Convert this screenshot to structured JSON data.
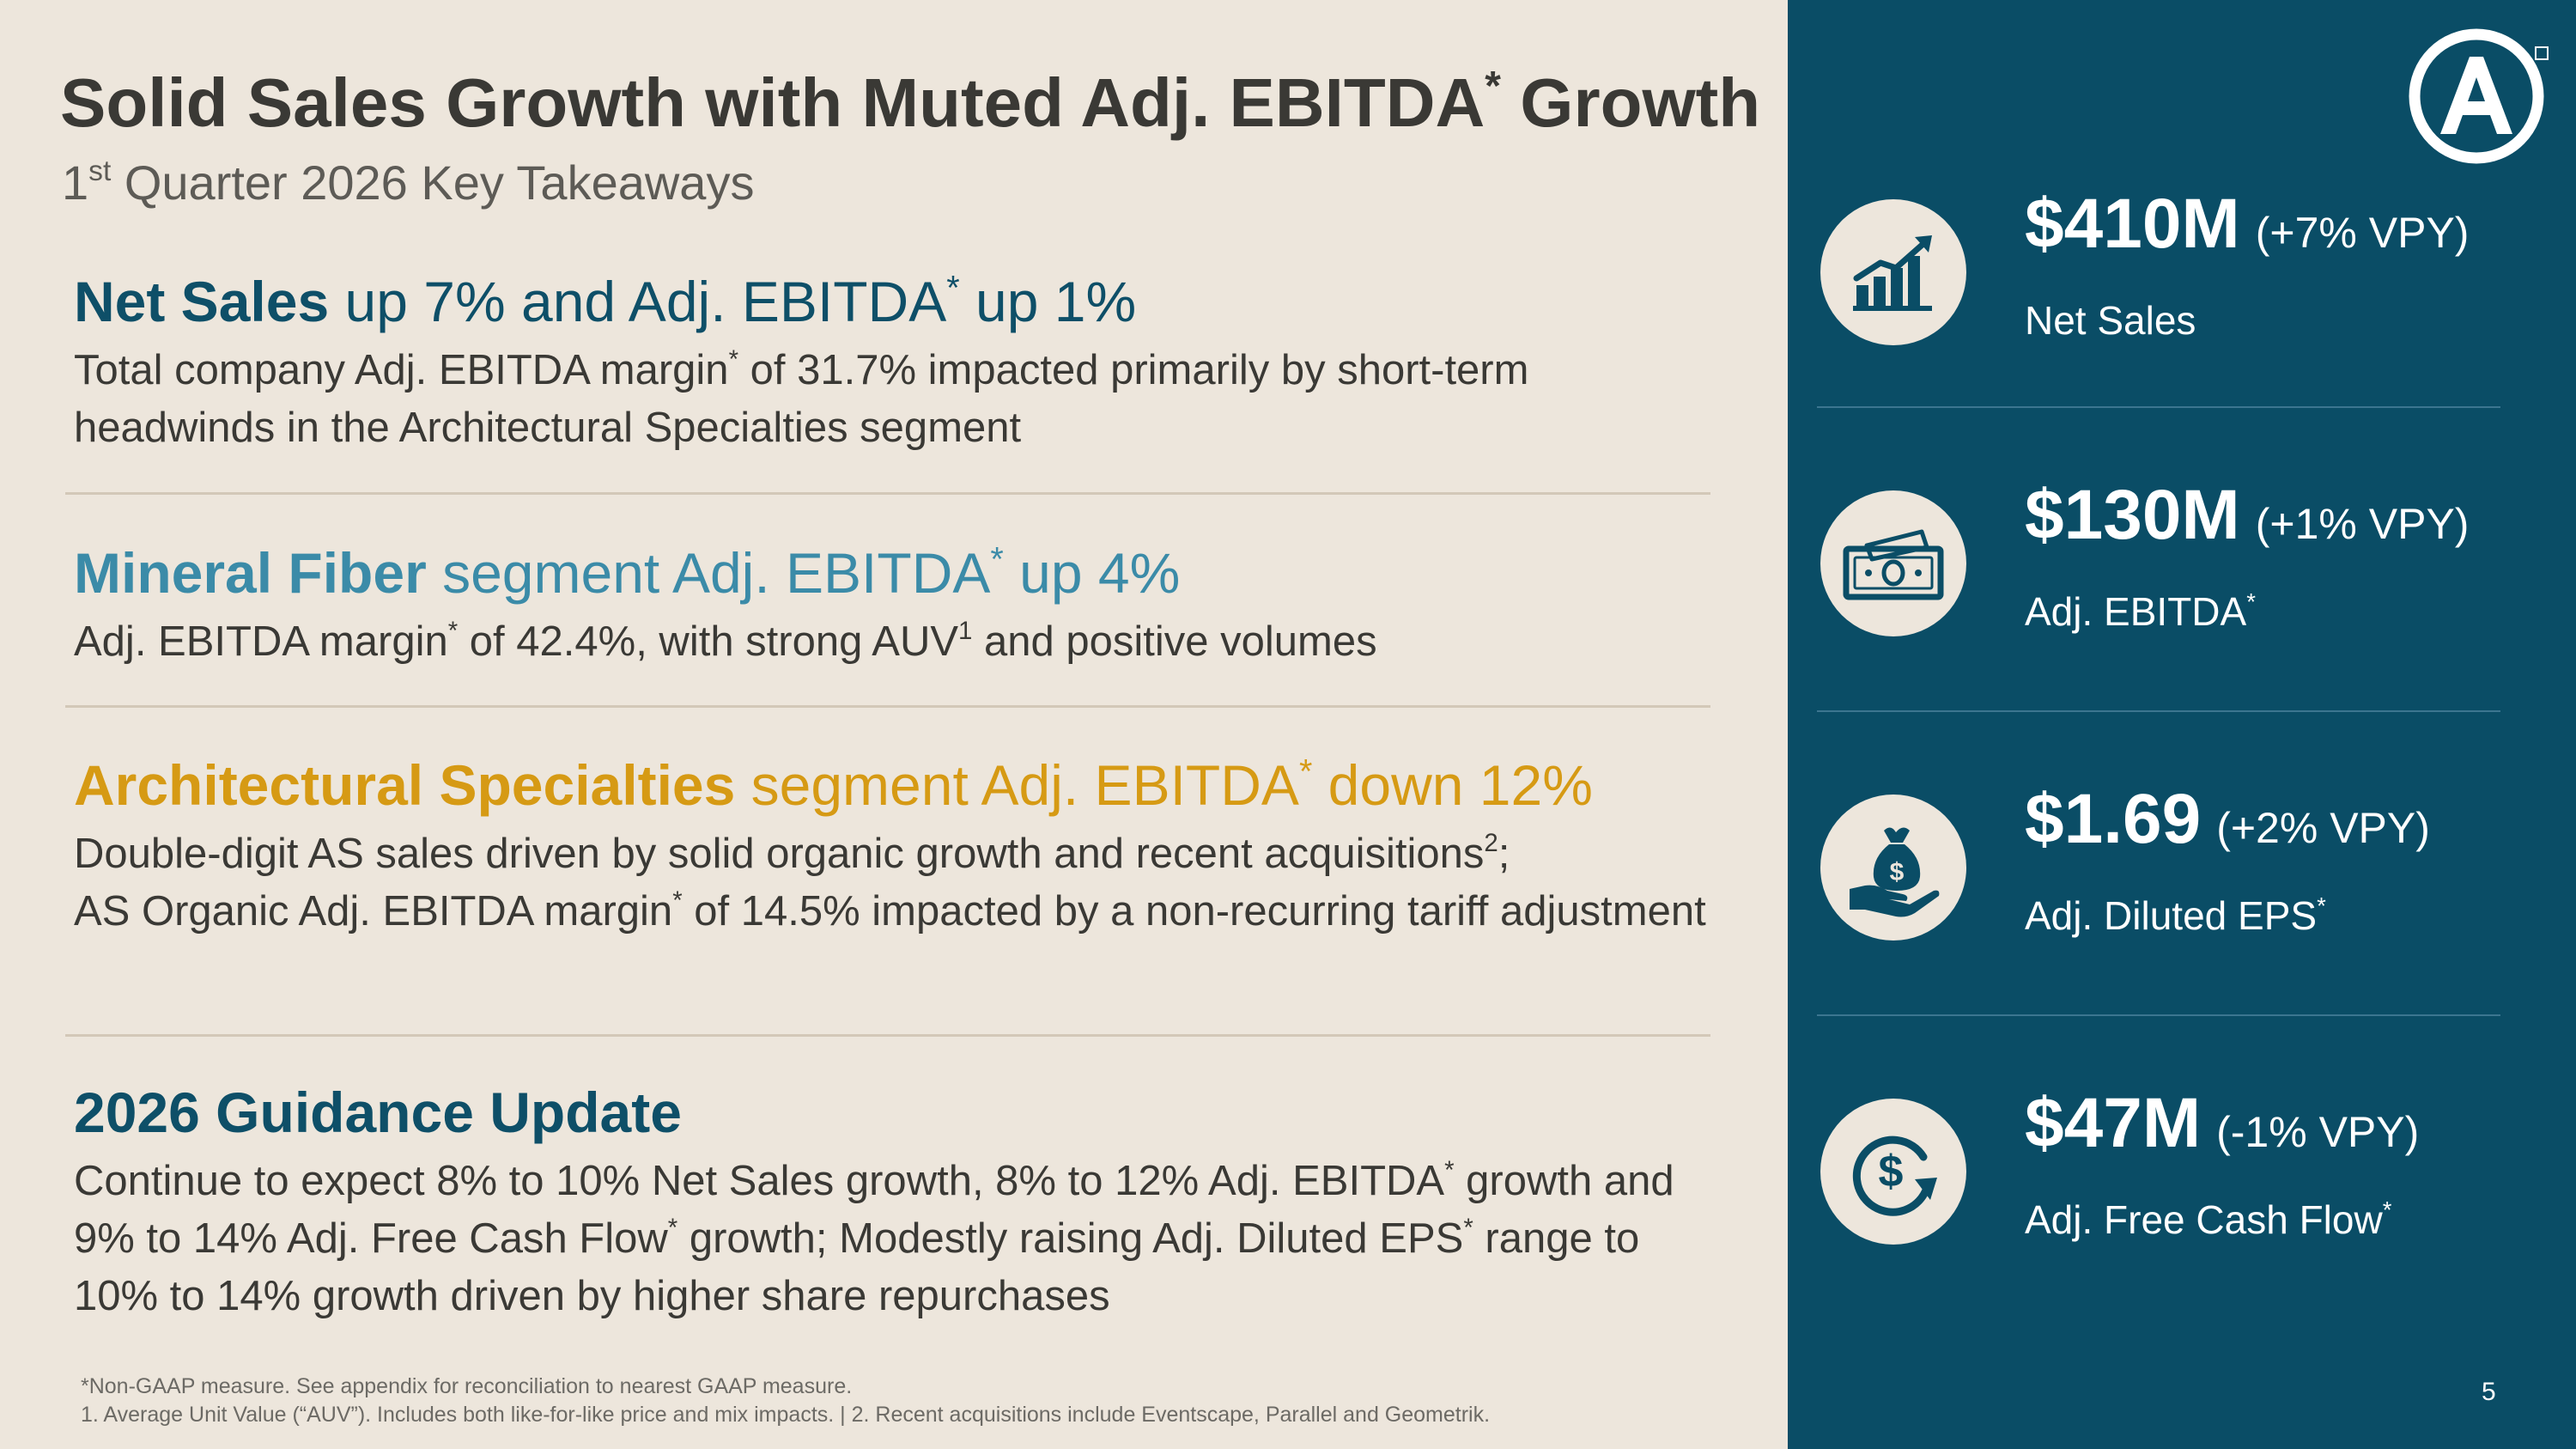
{
  "header": {
    "title": "Solid Sales Growth with Muted Adj. EBITDA",
    "title_sup": "*",
    "title_end": " Growth",
    "subtitle_pre": "1",
    "subtitle_sup": "st",
    "subtitle_post": " Quarter 2026 Key Takeaways"
  },
  "takeaways": [
    {
      "heading_strong": "Net Sales",
      "heading_rest": " up 7% and Adj. EBITDA",
      "heading_sup": "*",
      "heading_end": " up 1%",
      "body_a": "Total company Adj. EBITDA margin",
      "body_sup": "*",
      "body_b": " of 31.7% impacted primarily by short-term headwinds in the Architectural Specialties segment"
    },
    {
      "heading_strong": "Mineral Fiber",
      "heading_rest": " segment Adj. EBITDA",
      "heading_sup": "*",
      "heading_end": " up 4%",
      "body_a": "Adj. EBITDA margin",
      "body_sup": "*",
      "body_b": " of 42.4%, with strong AUV",
      "body_sup2": "1",
      "body_c": " and positive volumes"
    },
    {
      "heading_strong": "Architectural Specialties",
      "heading_rest": " segment Adj. EBITDA",
      "heading_sup": "*",
      "heading_end": " down 12%",
      "body_a": "Double-digit AS sales driven by solid organic growth and recent acquisitions",
      "body_sup": "2",
      "body_b": ";",
      "body_c": "AS Organic Adj. EBITDA margin",
      "body_sup2": "*",
      "body_d": " of 14.5% impacted by a non-recurring tariff adjustment"
    },
    {
      "heading_strong": "2026 Guidance Update",
      "body_a": "Continue to expect 8% to 10% Net Sales growth, 8% to 12% Adj. EBITDA",
      "body_sup": "*",
      "body_b": " growth and 9% to 14% Adj. Free Cash Flow",
      "body_sup2": "*",
      "body_c": " growth; Modestly raising Adj. Diluted EPS",
      "body_sup3": "*",
      "body_d": " range to 10% to 14% growth driven by higher share repurchases"
    }
  ],
  "footnotes": {
    "line1": "*Non-GAAP measure. See appendix for reconciliation to nearest GAAP measure.",
    "line2": "1.  Average Unit Value (“AUV”). Includes both like-for-like price and mix impacts.  |  2.  Recent acquisitions include Eventscape, Parallel and Geometrik."
  },
  "metrics": [
    {
      "icon": "growth-chart-icon",
      "value": "$410M",
      "change": "(+7% VPY)",
      "label": "Net Sales",
      "label_sup": ""
    },
    {
      "icon": "cash-bills-icon",
      "value": "$130M",
      "change": "(+1% VPY)",
      "label": "Adj. EBITDA",
      "label_sup": "*"
    },
    {
      "icon": "money-bag-hand-icon",
      "value": "$1.69",
      "change": "(+2% VPY)",
      "label": "Adj. Diluted EPS",
      "label_sup": "*"
    },
    {
      "icon": "dollar-cycle-icon",
      "value": "$47M",
      "change": "(-1% VPY)",
      "label": "Adj. Free Cash Flow",
      "label_sup": "*"
    }
  ],
  "brand": {
    "logo": "armstrong-a-logo-icon",
    "tm": "TM"
  },
  "page_number": "5",
  "colors": {
    "background": "#ede6dc",
    "panel": "#0a4d66",
    "teal": "#0e4f68",
    "blue": "#3b8ba8",
    "gold": "#d69a14"
  }
}
